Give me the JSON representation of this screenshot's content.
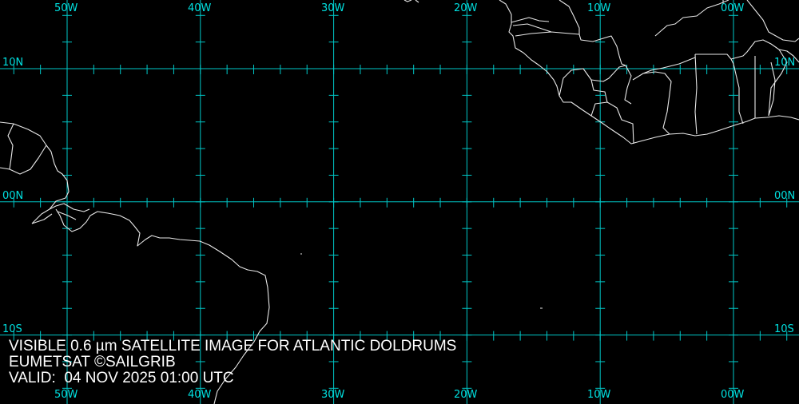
{
  "caption": {
    "line1": "VISIBLE 0.6 µm SATELLITE IMAGE FOR ATLANTIC DOLDRUMS",
    "line2": "EUMETSAT ©SAILGRIB",
    "line3": "VALID:  04 NOV 2025 01:00 UTC"
  },
  "longitude_labels": [
    "50W",
    "40W",
    "30W",
    "20W",
    "10W",
    "00W"
  ],
  "latitude_labels": [
    "10N",
    "00N",
    "10S"
  ],
  "colors": {
    "background": "#000000",
    "grid": "#00c8c8",
    "label": "#00e0e0",
    "coastline": "#ffffff"
  }
}
